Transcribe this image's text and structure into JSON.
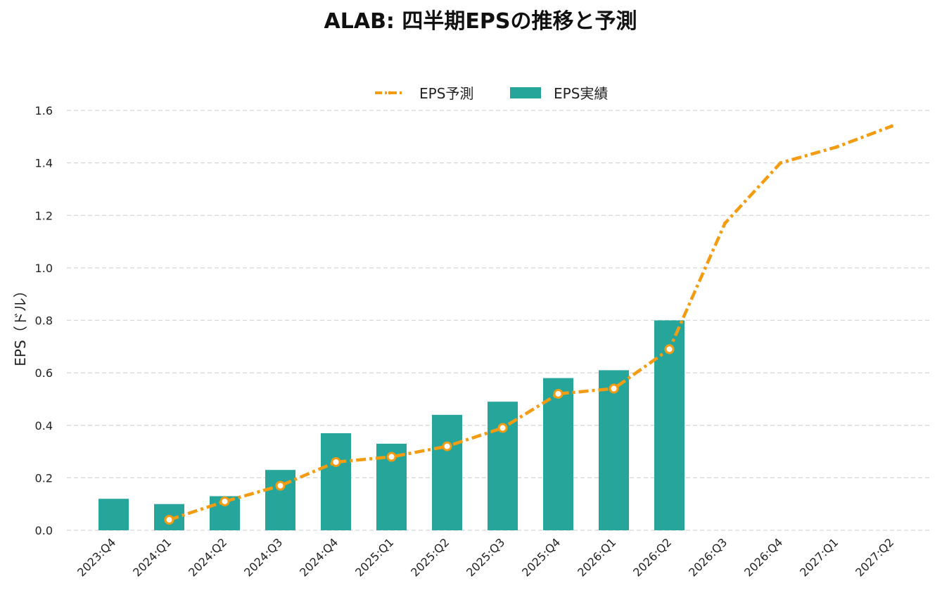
{
  "chart_data": {
    "type": "bar",
    "title": "ALAB: 四半期EPSの推移と予測",
    "xlabel": "",
    "ylabel": "EPS（ドル）",
    "categories": [
      "2023:Q4",
      "2024:Q1",
      "2024:Q2",
      "2024:Q3",
      "2024:Q4",
      "2025:Q1",
      "2025:Q2",
      "2025:Q3",
      "2025:Q4",
      "2026:Q1",
      "2026:Q2",
      "2026:Q3",
      "2026:Q4",
      "2027:Q1",
      "2027:Q2"
    ],
    "ylim": [
      0,
      1.6
    ],
    "yticks": [
      "0.0",
      "0.2",
      "0.4",
      "0.6",
      "0.8",
      "1.0",
      "1.2",
      "1.4",
      "1.6"
    ],
    "grid": true,
    "legend_position": "top-center",
    "series": [
      {
        "name": "EPS実績",
        "type": "bar",
        "color": "#26a69a",
        "values": [
          0.12,
          0.1,
          0.13,
          0.23,
          0.37,
          0.33,
          0.44,
          0.49,
          0.58,
          0.61,
          0.8,
          null,
          null,
          null,
          null
        ]
      },
      {
        "name": "EPS予測",
        "type": "line",
        "color": "#f39c12",
        "values": [
          null,
          0.04,
          0.11,
          0.17,
          0.26,
          0.28,
          0.32,
          0.39,
          0.52,
          0.54,
          0.69,
          1.17,
          1.4,
          1.46,
          1.54
        ],
        "markers_through_index": 10
      }
    ]
  }
}
